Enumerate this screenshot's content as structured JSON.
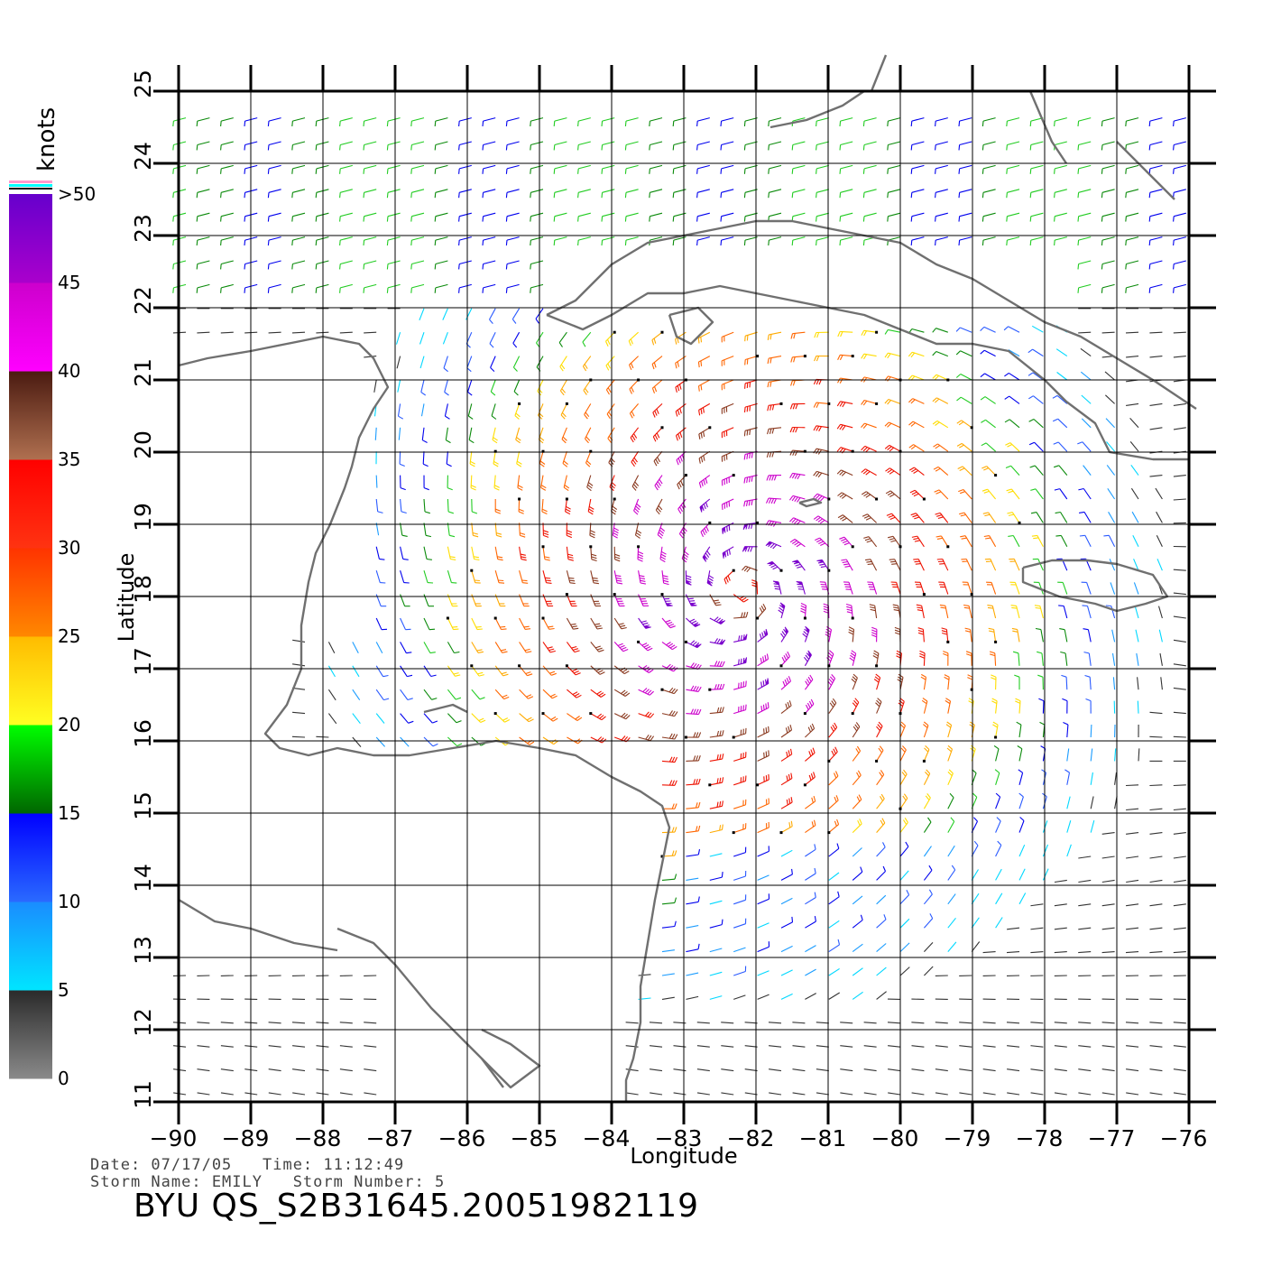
{
  "product": "BYU QS_S2B31645.20051982119",
  "info": {
    "date_line": "Date: 07/17/05   Time: 11:12:49",
    "storm_line": "Storm Name: EMILY   Storm Number: 5"
  },
  "axes": {
    "xlabel": "Longitude",
    "ylabel": "Latitude",
    "lon_ticks": [
      "−90",
      "−89",
      "−88",
      "−87",
      "−86",
      "−85",
      "−84",
      "−83",
      "−82",
      "−81",
      "−80",
      "−79",
      "−78",
      "−77",
      "−76"
    ],
    "lat_ticks": [
      "11",
      "12",
      "13",
      "14",
      "15",
      "16",
      "17",
      "18",
      "19",
      "20",
      "21",
      "22",
      "23",
      "24",
      "25"
    ],
    "lon_range": [
      -90,
      -75.6
    ],
    "lat_range": [
      11,
      25
    ]
  },
  "legend": {
    "unit": "knots",
    "labels": [
      "0",
      "5",
      "10",
      "15",
      "20",
      "25",
      "30",
      "35",
      "40",
      "45",
      ">50"
    ],
    "bands": [
      {
        "range": "0-5",
        "colors": [
          "#8a8a8a",
          "#2a2a2a"
        ]
      },
      {
        "range": "5-10",
        "colors": [
          "#00e5ff",
          "#1a8cff"
        ]
      },
      {
        "range": "10-15",
        "colors": [
          "#2a6aff",
          "#0000ff"
        ]
      },
      {
        "range": "15-20",
        "colors": [
          "#006600",
          "#00ff00"
        ]
      },
      {
        "range": "20-25",
        "colors": [
          "#ffff22",
          "#ffbb00"
        ]
      },
      {
        "range": "25-30",
        "colors": [
          "#ff8800",
          "#ff3300"
        ]
      },
      {
        "range": "30-35",
        "colors": [
          "#ff3311",
          "#ff0000"
        ]
      },
      {
        "range": "35-40",
        "colors": [
          "#b07050",
          "#4a1a10"
        ]
      },
      {
        "range": "40-45",
        "colors": [
          "#ff00ff",
          "#cc00cc"
        ]
      },
      {
        "range": "45-50",
        "colors": [
          "#aa00cc",
          "#6600cc"
        ]
      }
    ]
  },
  "storm": {
    "name": "EMILY",
    "center_lon": -82.2,
    "center_lat": 18.1
  },
  "colors": {
    "coast": "#707070",
    "grid": "#000000",
    "frame": "#000000"
  }
}
